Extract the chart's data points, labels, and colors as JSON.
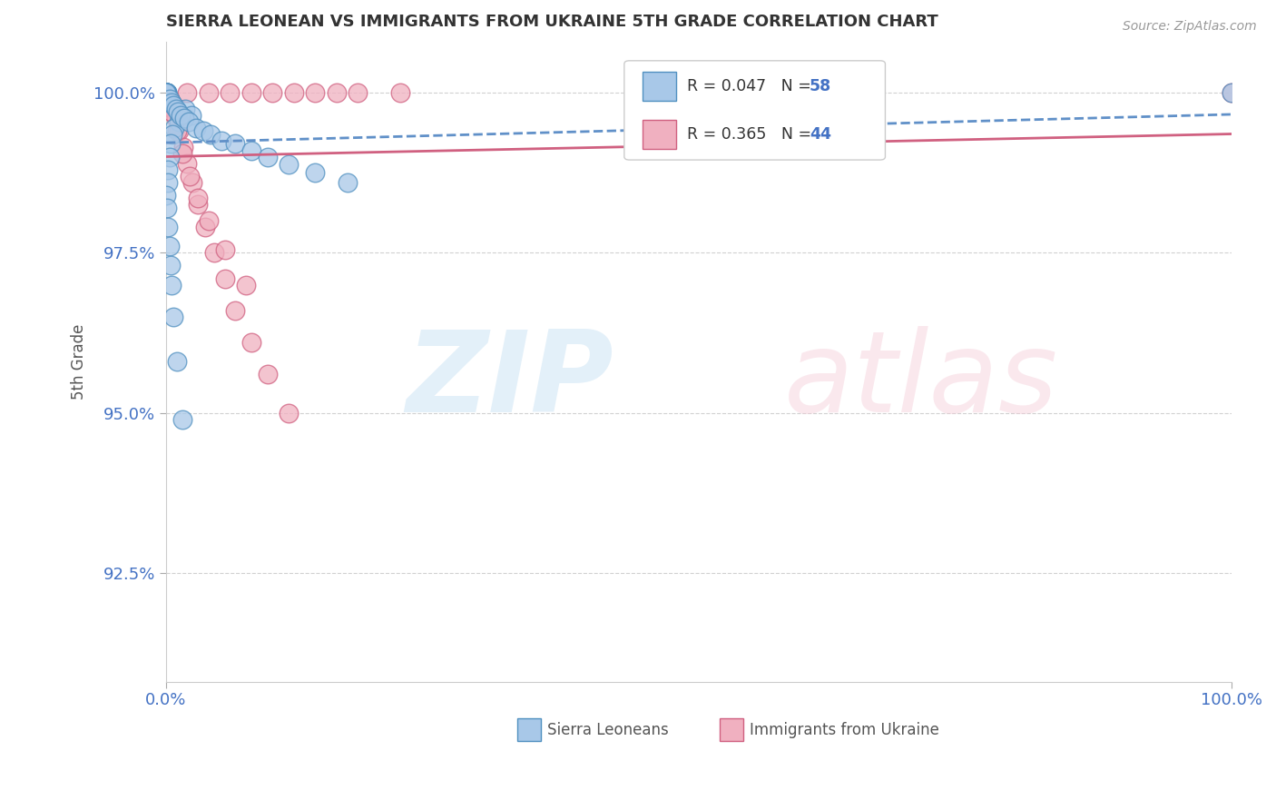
{
  "title": "SIERRA LEONEAN VS IMMIGRANTS FROM UKRAINE 5TH GRADE CORRELATION CHART",
  "source": "Source: ZipAtlas.com",
  "ylabel": "5th Grade",
  "xlim": [
    0.0,
    1.0
  ],
  "ylim": [
    0.908,
    1.008
  ],
  "yticks": [
    0.925,
    0.95,
    0.975,
    1.0
  ],
  "ytick_labels": [
    "92.5%",
    "95.0%",
    "97.5%",
    "100.0%"
  ],
  "xticks": [
    0.0,
    1.0
  ],
  "xtick_labels": [
    "0.0%",
    "100.0%"
  ],
  "legend_r1": "R = 0.047",
  "legend_n1": "N = 58",
  "legend_r2": "R = 0.365",
  "legend_n2": "N = 44",
  "color_blue_face": "#a8c8e8",
  "color_blue_edge": "#5090c0",
  "color_pink_face": "#f0b0c0",
  "color_pink_edge": "#d06080",
  "color_blue_line": "#6090c8",
  "color_pink_line": "#d06080",
  "background_color": "#ffffff",
  "blue_x": [
    0.005,
    0.018,
    0.024,
    0.012,
    0.008,
    0.006,
    0.004,
    0.003,
    0.002,
    0.002,
    0.001,
    0.001,
    0.001,
    0.0,
    0.0,
    0.0,
    0.0,
    0.0,
    0.0,
    0.0,
    0.0,
    0.0,
    0.0,
    0.0,
    0.0,
    0.0,
    0.0,
    0.0,
    0.0,
    0.0,
    0.003,
    0.005,
    0.007,
    0.009,
    0.011,
    0.014,
    0.017,
    0.021,
    0.028,
    0.035,
    0.042,
    0.052,
    0.065,
    0.08,
    0.095,
    0.115,
    0.14,
    0.17,
    0.0,
    0.001,
    0.002,
    0.003,
    0.004,
    0.005,
    0.007,
    0.01,
    0.015,
    1.0
  ],
  "blue_y": [
    0.9985,
    0.9975,
    0.9965,
    0.9955,
    0.9945,
    0.9935,
    0.992,
    0.99,
    0.988,
    0.986,
    1.0,
    1.0,
    1.0,
    1.0,
    1.0,
    1.0,
    1.0,
    1.0,
    1.0,
    1.0,
    1.0,
    1.0,
    1.0,
    1.0,
    1.0,
    1.0,
    1.0,
    1.0,
    1.0,
    1.0,
    0.999,
    0.9985,
    0.998,
    0.9975,
    0.997,
    0.9965,
    0.996,
    0.9955,
    0.9945,
    0.994,
    0.9935,
    0.9925,
    0.992,
    0.991,
    0.99,
    0.9888,
    0.9875,
    0.986,
    0.984,
    0.982,
    0.979,
    0.976,
    0.973,
    0.97,
    0.965,
    0.958,
    0.949,
    1.0
  ],
  "pink_x": [
    0.0,
    0.0,
    0.0,
    0.0,
    0.0,
    0.0,
    0.0,
    0.0,
    0.0,
    0.0,
    0.02,
    0.04,
    0.06,
    0.08,
    0.1,
    0.12,
    0.14,
    0.16,
    0.18,
    0.22,
    0.003,
    0.006,
    0.009,
    0.012,
    0.016,
    0.02,
    0.025,
    0.03,
    0.037,
    0.045,
    0.055,
    0.065,
    0.08,
    0.095,
    0.115,
    0.005,
    0.01,
    0.015,
    0.022,
    0.03,
    0.04,
    0.055,
    0.075,
    1.0
  ],
  "pink_y": [
    1.0,
    1.0,
    1.0,
    1.0,
    1.0,
    1.0,
    1.0,
    1.0,
    1.0,
    1.0,
    1.0,
    1.0,
    1.0,
    1.0,
    1.0,
    1.0,
    1.0,
    1.0,
    1.0,
    1.0,
    0.999,
    0.9975,
    0.996,
    0.994,
    0.9915,
    0.989,
    0.986,
    0.9825,
    0.979,
    0.975,
    0.971,
    0.966,
    0.961,
    0.956,
    0.95,
    0.997,
    0.994,
    0.9905,
    0.987,
    0.9835,
    0.98,
    0.9755,
    0.97,
    1.0
  ]
}
